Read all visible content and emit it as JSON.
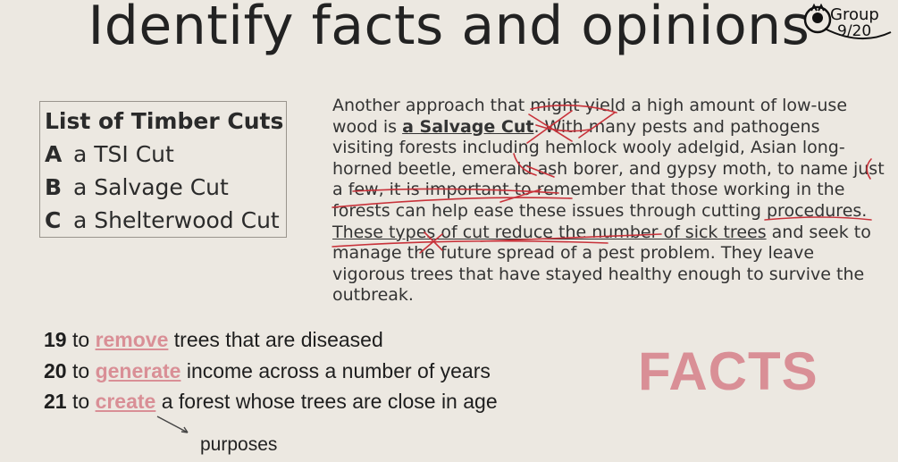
{
  "title": "Identify facts and opinions",
  "logo": {
    "line1": "Group",
    "line2": "9/20"
  },
  "cuts_list": {
    "heading": "List of Timber Cuts",
    "items": [
      {
        "letter": "A",
        "label": "a TSI Cut"
      },
      {
        "letter": "B",
        "label": "a Salvage Cut"
      },
      {
        "letter": "C",
        "label": "a Shelterwood Cut"
      }
    ]
  },
  "passage": {
    "s1a": "Another approach that might yield a high amount of low-use wood is ",
    "s1b": "a Salvage Cut",
    "s1c": ". With many pests and pathogens visiting forests including hemlock wooly adelgid, Asian long-horned beetle, emerald ash borer, and gypsy moth, to name just a few, it is important to remember that those working in the forests can help ease these issues through cutting procedures. ",
    "s2": "These types of cut reduce the number of sick trees",
    "s3": " and seek to manage the future spread of a pest problem. They leave vigorous trees that have stayed healthy enough to survive the outbreak."
  },
  "questions": [
    {
      "num": "19",
      "pre": " to ",
      "word": "remove",
      "post": " trees that are diseased"
    },
    {
      "num": "20",
      "pre": " to ",
      "word": "generate",
      "post": " income across a number of years"
    },
    {
      "num": "21",
      "pre": " to ",
      "word": "create",
      "post": " a forest whose trees are close in age"
    }
  ],
  "purposes_note": "purposes",
  "facts_label": "FACTS",
  "colors": {
    "accent_pink": "#d98f96",
    "ink_red": "#c8323a",
    "background": "#ece8e1"
  }
}
